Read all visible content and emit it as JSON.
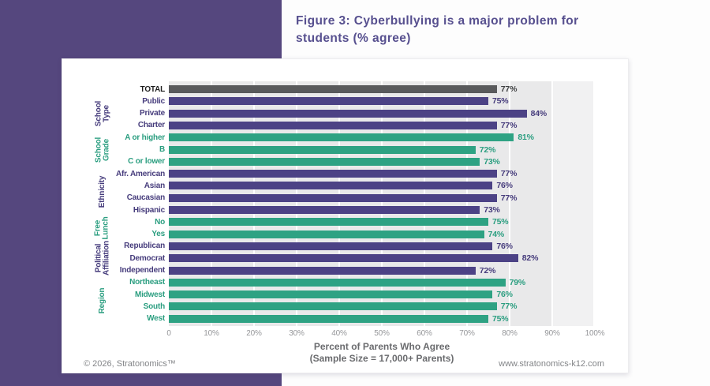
{
  "page": {
    "title_line1": "Figure 3: Cyberbullying is a major problem for",
    "title_line2": "students (% agree)",
    "footer_left": "© 2026, Stratonomics™",
    "footer_right": "www.stratonomics-k12.com"
  },
  "colors": {
    "background_block": "#55477E",
    "title_text": "#57508F",
    "bar_gray": "#595A5C",
    "bar_purple": "#4C4285",
    "bar_green": "#2EA283",
    "plot_background": "#E9E9EA"
  },
  "chart_data": {
    "type": "bar",
    "orientation": "horizontal",
    "title": "Figure 3: Cyberbullying is a major problem for students (% agree)",
    "xlabel_lines": [
      "Percent of Parents Who Agree",
      "(Sample Size = 17,000+ Parents)"
    ],
    "xlim": [
      0,
      100
    ],
    "x_ticks": [
      "0",
      "10%",
      "20%",
      "30%",
      "40%",
      "50%",
      "60%",
      "70%",
      "80%",
      "90%",
      "100%"
    ],
    "grid": true,
    "value_suffix": "%",
    "rows": [
      {
        "label": "TOTAL",
        "value": 77,
        "color": "gray"
      },
      {
        "label": "Public",
        "value": 75,
        "color": "purple"
      },
      {
        "label": "Private",
        "value": 84,
        "color": "purple"
      },
      {
        "label": "Charter",
        "value": 77,
        "color": "purple"
      },
      {
        "label": "A or higher",
        "value": 81,
        "color": "green"
      },
      {
        "label": "B",
        "value": 72,
        "color": "green"
      },
      {
        "label": "C or lower",
        "value": 73,
        "color": "green"
      },
      {
        "label": "Afr. American",
        "value": 77,
        "color": "purple"
      },
      {
        "label": "Asian",
        "value": 76,
        "color": "purple"
      },
      {
        "label": "Caucasian",
        "value": 77,
        "color": "purple"
      },
      {
        "label": "Hispanic",
        "value": 73,
        "color": "purple"
      },
      {
        "label": "No",
        "value": 75,
        "color": "green"
      },
      {
        "label": "Yes",
        "value": 74,
        "color": "green"
      },
      {
        "label": "Republican",
        "value": 76,
        "color": "purple"
      },
      {
        "label": "Democrat",
        "value": 82,
        "color": "purple"
      },
      {
        "label": "Independent",
        "value": 72,
        "color": "purple"
      },
      {
        "label": "Northeast",
        "value": 79,
        "color": "green"
      },
      {
        "label": "Midwest",
        "value": 76,
        "color": "green"
      },
      {
        "label": "South",
        "value": 77,
        "color": "green"
      },
      {
        "label": "West",
        "value": 75,
        "color": "green"
      }
    ],
    "groups": [
      {
        "label": "School\nType",
        "start": 1,
        "end": 3,
        "color": "purple"
      },
      {
        "label": "School\nGrade",
        "start": 4,
        "end": 6,
        "color": "green"
      },
      {
        "label": "Ethnicity",
        "start": 7,
        "end": 10,
        "color": "purple"
      },
      {
        "label": "Free\nLunch",
        "start": 11,
        "end": 12,
        "color": "green"
      },
      {
        "label": "Political\nAffiliation",
        "start": 13,
        "end": 15,
        "color": "purple"
      },
      {
        "label": "Region",
        "start": 16,
        "end": 19,
        "color": "green"
      }
    ]
  }
}
